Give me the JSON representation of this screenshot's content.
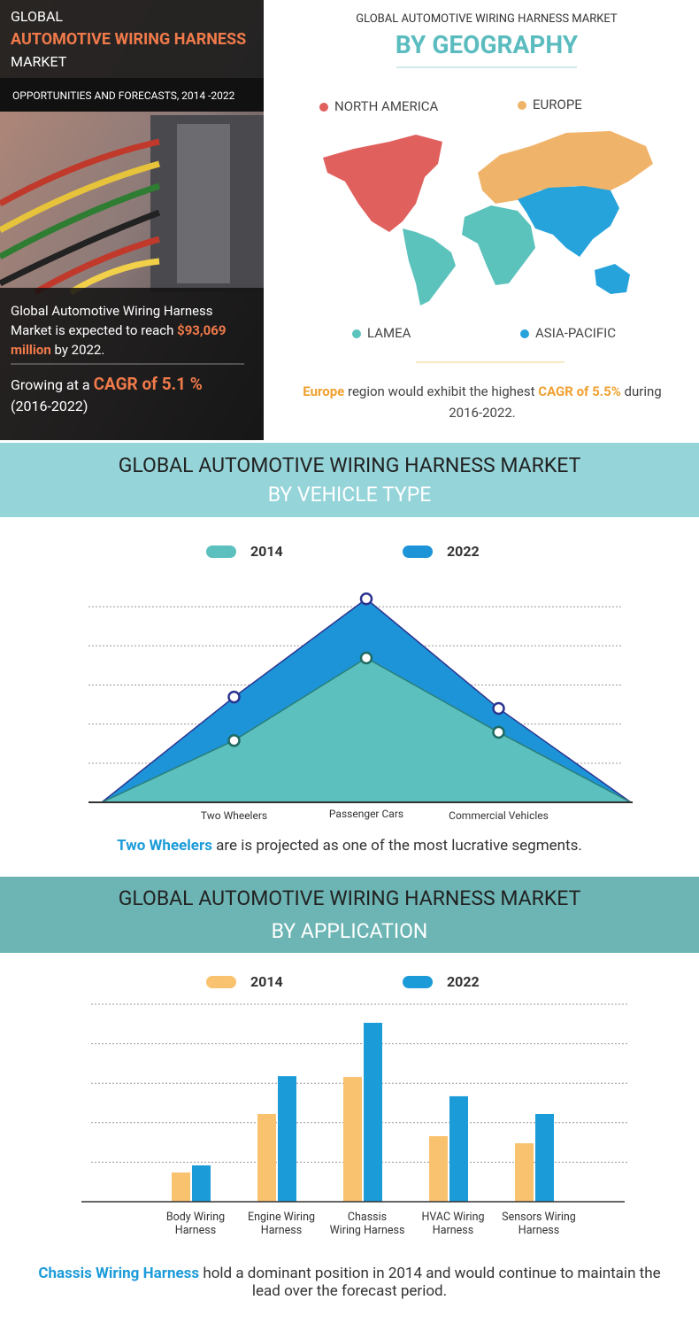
{
  "header": {
    "line1": "GLOBAL",
    "line2": "AUTOMOTIVE WIRING HARNESS",
    "line3": "MARKET",
    "subtitle": "OPPORTUNITIES AND FORECASTS, 2014 -2022",
    "text1": "Global Automotive Wiring Harness Market is expected to reach",
    "highlight1": "$93,069 million",
    "text2": "by 2022.",
    "text3": "Growing at a",
    "highlight2": "CAGR of 5.1 %",
    "text4": "(2016-2022)"
  },
  "geography": {
    "title": "GLOBAL AUTOMOTIVE WIRING HARNESS MARKET",
    "subtitle": "BY GEOGRAPHY",
    "regions": [
      {
        "name": "NORTH AMERICA",
        "color": "#e0605e"
      },
      {
        "name": "EUROPE",
        "color": "#f0b36a"
      },
      {
        "name": "LAMEA",
        "color": "#5bc2bc"
      },
      {
        "name": "ASIA-PACIFIC",
        "color": "#27a3dc"
      }
    ],
    "caption_highlight1": "Europe",
    "caption_text1": "region would exhibit the highest",
    "caption_highlight2": "CAGR of 5.5%",
    "caption_text2": "during 2016-2022."
  },
  "vehicle": {
    "title": "GLOBAL AUTOMOTIVE WIRING HARNESS MARKET",
    "subtitle": "BY VEHICLE TYPE",
    "caption_highlight": "Two Wheelers",
    "caption_text": "are is projected as one of the most lucrative segments."
  },
  "application": {
    "title": "GLOBAL AUTOMOTIVE WIRING HARNESS MARKET",
    "subtitle": "BY APPLICATION",
    "caption_highlight": "Chassis Wiring Harness",
    "caption_text": "hold a dominant position in 2014 and would continue to maintain the lead over the forecast period."
  },
  "chart_data": [
    {
      "type": "area",
      "categories": [
        "Two Wheelers",
        "Passenger Cars",
        "Commercial Vehicles"
      ],
      "series": [
        {
          "name": "2014",
          "color": "#5cc0bf",
          "values": [
            1.58,
            3.69,
            1.79
          ]
        },
        {
          "name": "2022",
          "color": "#1d94d8",
          "values": [
            2.69,
            5.2,
            2.4
          ]
        }
      ],
      "ylim": [
        0,
        5.5
      ],
      "yticks": [
        1,
        2,
        3,
        4,
        5
      ],
      "grid": true
    },
    {
      "type": "bar",
      "categories": [
        "Body Wiring\nHarness",
        "Engine Wiring\nHarness",
        "Chassis\nWiring Harness",
        "HVAC Wiring\nHarness",
        "Sensors Wiring\nHarness"
      ],
      "series": [
        {
          "name": "2014",
          "color": "#f9c26f",
          "values": [
            0.74,
            2.22,
            3.16,
            1.66,
            1.48
          ]
        },
        {
          "name": "2022",
          "color": "#1c9bd9",
          "values": [
            0.92,
            3.18,
            4.53,
            2.67,
            2.22
          ]
        }
      ],
      "ylim": [
        0,
        5
      ],
      "yticks": [
        1,
        2,
        3,
        4,
        5
      ],
      "grid": true
    }
  ]
}
